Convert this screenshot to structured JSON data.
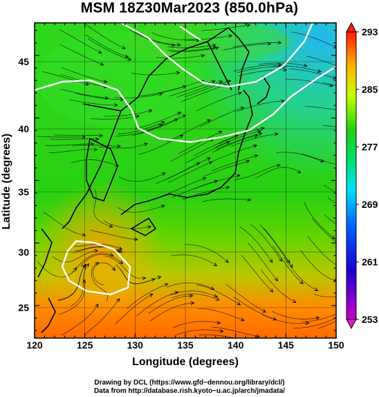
{
  "title": "MSM 18Z30Mar2023 (850.0hPa)",
  "map": {
    "x_axis": {
      "label": "Longitude (degrees)",
      "ticks": [
        "120",
        "125",
        "130",
        "135",
        "140",
        "145",
        "150"
      ],
      "range": [
        120,
        150
      ]
    },
    "y_axis": {
      "label": "Latitude  (degrees)",
      "ticks": [
        "25",
        "30",
        "35",
        "40",
        "45"
      ],
      "range": [
        22.4,
        47.6
      ]
    },
    "field": "temperature (K) with wind streamlines",
    "colors": {
      "warm": "#ff6a00",
      "mid": "#22d20a",
      "cool": "#22c6e6"
    }
  },
  "colorbar": {
    "labels": [
      "293",
      "285",
      "277",
      "269",
      "261",
      "253"
    ],
    "range": [
      253,
      293
    ],
    "stops": [
      "#ff1aa0",
      "#0000e0",
      "#00b4ff",
      "#12d53c",
      "#30e020",
      "#ffff00",
      "#ff9c00",
      "#ff1a00"
    ]
  },
  "credits": {
    "line1": "Drawing by DCL (https://www.gfd−dennou.org/library/dcl/)",
    "line2": "Data from http://database.rish.kyoto−u.ac.jp/arch/jmadata/"
  }
}
